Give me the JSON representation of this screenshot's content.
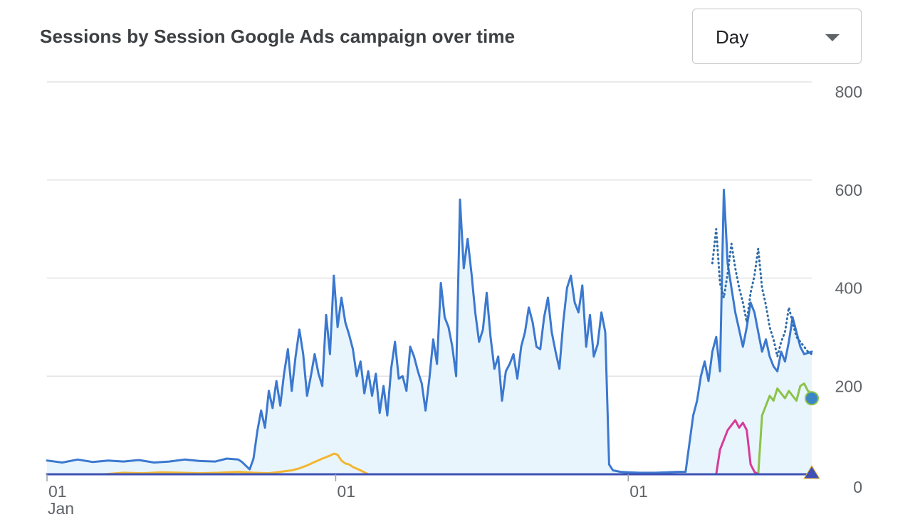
{
  "chart_data": {
    "type": "line",
    "title": "Sessions by Session Google Ads campaign over time",
    "granularity": "Day",
    "y_ticks": [
      "800",
      "600",
      "400",
      "200",
      "0"
    ],
    "ylim": [
      0,
      800
    ],
    "x_ticks": [
      {
        "day": 0,
        "label": "01",
        "sublabel": "Jan"
      },
      {
        "day": 151,
        "label": "01",
        "sublabel": ""
      },
      {
        "day": 304,
        "label": "01",
        "sublabel": ""
      }
    ],
    "x_range": [
      0,
      400
    ],
    "grid": true,
    "axis_position": "right",
    "series": [
      {
        "color": "#3b78d0",
        "style": "solid",
        "fill": "#e9f5fc",
        "points": [
          [
            0,
            28
          ],
          [
            8,
            24
          ],
          [
            16,
            30
          ],
          [
            24,
            25
          ],
          [
            32,
            28
          ],
          [
            40,
            26
          ],
          [
            48,
            29
          ],
          [
            56,
            24
          ],
          [
            64,
            26
          ],
          [
            72,
            30
          ],
          [
            80,
            27
          ],
          [
            88,
            26
          ],
          [
            94,
            32
          ],
          [
            100,
            30
          ],
          [
            102,
            25
          ],
          [
            106,
            10
          ],
          [
            108,
            32
          ],
          [
            110,
            88
          ],
          [
            112,
            130
          ],
          [
            114,
            95
          ],
          [
            116,
            170
          ],
          [
            118,
            135
          ],
          [
            120,
            190
          ],
          [
            122,
            140
          ],
          [
            124,
            205
          ],
          [
            126,
            255
          ],
          [
            128,
            170
          ],
          [
            130,
            240
          ],
          [
            132,
            295
          ],
          [
            134,
            245
          ],
          [
            136,
            160
          ],
          [
            138,
            200
          ],
          [
            140,
            245
          ],
          [
            142,
            205
          ],
          [
            144,
            180
          ],
          [
            146,
            325
          ],
          [
            148,
            245
          ],
          [
            150,
            405
          ],
          [
            152,
            300
          ],
          [
            154,
            360
          ],
          [
            156,
            310
          ],
          [
            158,
            285
          ],
          [
            160,
            255
          ],
          [
            162,
            200
          ],
          [
            164,
            230
          ],
          [
            166,
            165
          ],
          [
            168,
            210
          ],
          [
            170,
            160
          ],
          [
            172,
            205
          ],
          [
            174,
            125
          ],
          [
            176,
            180
          ],
          [
            178,
            120
          ],
          [
            180,
            215
          ],
          [
            182,
            270
          ],
          [
            184,
            195
          ],
          [
            186,
            200
          ],
          [
            188,
            170
          ],
          [
            190,
            260
          ],
          [
            192,
            240
          ],
          [
            194,
            210
          ],
          [
            196,
            185
          ],
          [
            198,
            130
          ],
          [
            200,
            195
          ],
          [
            202,
            275
          ],
          [
            204,
            225
          ],
          [
            206,
            390
          ],
          [
            208,
            320
          ],
          [
            210,
            300
          ],
          [
            212,
            260
          ],
          [
            214,
            200
          ],
          [
            216,
            560
          ],
          [
            218,
            420
          ],
          [
            220,
            480
          ],
          [
            222,
            410
          ],
          [
            224,
            330
          ],
          [
            226,
            270
          ],
          [
            228,
            295
          ],
          [
            230,
            370
          ],
          [
            232,
            280
          ],
          [
            234,
            215
          ],
          [
            236,
            240
          ],
          [
            238,
            150
          ],
          [
            240,
            210
          ],
          [
            242,
            225
          ],
          [
            244,
            245
          ],
          [
            246,
            195
          ],
          [
            248,
            260
          ],
          [
            250,
            290
          ],
          [
            252,
            340
          ],
          [
            254,
            310
          ],
          [
            256,
            260
          ],
          [
            258,
            255
          ],
          [
            260,
            320
          ],
          [
            262,
            360
          ],
          [
            264,
            290
          ],
          [
            266,
            250
          ],
          [
            268,
            215
          ],
          [
            270,
            310
          ],
          [
            272,
            380
          ],
          [
            274,
            405
          ],
          [
            276,
            350
          ],
          [
            278,
            330
          ],
          [
            280,
            385
          ],
          [
            282,
            260
          ],
          [
            284,
            325
          ],
          [
            286,
            240
          ],
          [
            288,
            265
          ],
          [
            290,
            330
          ],
          [
            292,
            290
          ],
          [
            294,
            20
          ],
          [
            296,
            8
          ],
          [
            300,
            5
          ],
          [
            304,
            4
          ],
          [
            310,
            3
          ],
          [
            318,
            3
          ],
          [
            324,
            4
          ],
          [
            330,
            5
          ],
          [
            334,
            5
          ],
          [
            338,
            120
          ],
          [
            340,
            150
          ],
          [
            342,
            200
          ],
          [
            344,
            230
          ],
          [
            346,
            190
          ],
          [
            348,
            250
          ],
          [
            350,
            280
          ],
          [
            352,
            210
          ],
          [
            354,
            580
          ],
          [
            356,
            430
          ],
          [
            358,
            380
          ],
          [
            360,
            330
          ],
          [
            362,
            295
          ],
          [
            364,
            260
          ],
          [
            366,
            300
          ],
          [
            368,
            350
          ],
          [
            370,
            330
          ],
          [
            372,
            290
          ],
          [
            374,
            250
          ],
          [
            376,
            275
          ],
          [
            378,
            240
          ],
          [
            380,
            220
          ],
          [
            382,
            210
          ],
          [
            384,
            250
          ],
          [
            386,
            230
          ],
          [
            388,
            270
          ],
          [
            390,
            320
          ],
          [
            392,
            290
          ],
          [
            394,
            260
          ],
          [
            396,
            245
          ],
          [
            400,
            250
          ]
        ]
      },
      {
        "color": "#2f6ca8",
        "style": "dotted",
        "fill": "",
        "points": [
          [
            348,
            430
          ],
          [
            350,
            500
          ],
          [
            352,
            390
          ],
          [
            354,
            360
          ],
          [
            356,
            410
          ],
          [
            358,
            470
          ],
          [
            360,
            420
          ],
          [
            362,
            380
          ],
          [
            364,
            350
          ],
          [
            366,
            310
          ],
          [
            368,
            370
          ],
          [
            370,
            405
          ],
          [
            372,
            460
          ],
          [
            374,
            380
          ],
          [
            376,
            345
          ],
          [
            378,
            300
          ],
          [
            380,
            275
          ],
          [
            382,
            240
          ],
          [
            384,
            270
          ],
          [
            386,
            290
          ],
          [
            388,
            340
          ],
          [
            390,
            310
          ],
          [
            392,
            280
          ],
          [
            394,
            270
          ],
          [
            396,
            260
          ],
          [
            398,
            250
          ],
          [
            400,
            245
          ]
        ]
      },
      {
        "color": "#8bc34a",
        "style": "solid",
        "fill": "",
        "points": [
          [
            372,
            0
          ],
          [
            374,
            120
          ],
          [
            376,
            140
          ],
          [
            378,
            160
          ],
          [
            380,
            150
          ],
          [
            382,
            175
          ],
          [
            384,
            165
          ],
          [
            386,
            155
          ],
          [
            388,
            170
          ],
          [
            390,
            160
          ],
          [
            392,
            150
          ],
          [
            394,
            180
          ],
          [
            396,
            185
          ],
          [
            398,
            170
          ],
          [
            400,
            165
          ]
        ]
      },
      {
        "color": "#d63b9a",
        "style": "solid",
        "fill": "",
        "points": [
          [
            350,
            0
          ],
          [
            352,
            50
          ],
          [
            354,
            70
          ],
          [
            356,
            90
          ],
          [
            358,
            100
          ],
          [
            360,
            110
          ],
          [
            362,
            95
          ],
          [
            364,
            105
          ],
          [
            366,
            90
          ],
          [
            368,
            20
          ],
          [
            370,
            5
          ],
          [
            372,
            0
          ],
          [
            376,
            0
          ],
          [
            400,
            0
          ]
        ]
      },
      {
        "color": "#f2b632",
        "style": "solid",
        "fill": "",
        "points": [
          [
            30,
            0
          ],
          [
            40,
            3
          ],
          [
            50,
            2
          ],
          [
            60,
            4
          ],
          [
            70,
            3
          ],
          [
            80,
            2
          ],
          [
            90,
            3
          ],
          [
            100,
            5
          ],
          [
            108,
            3
          ],
          [
            116,
            2
          ],
          [
            124,
            6
          ],
          [
            128,
            8
          ],
          [
            132,
            12
          ],
          [
            136,
            18
          ],
          [
            140,
            25
          ],
          [
            144,
            32
          ],
          [
            148,
            38
          ],
          [
            150,
            42
          ],
          [
            152,
            40
          ],
          [
            154,
            28
          ],
          [
            156,
            22
          ],
          [
            158,
            20
          ],
          [
            160,
            15
          ],
          [
            164,
            8
          ],
          [
            168,
            0
          ],
          [
            200,
            0
          ],
          [
            400,
            0
          ]
        ]
      },
      {
        "color": "#3f51b5",
        "style": "solid",
        "fill": "",
        "points": [
          [
            0,
            0
          ],
          [
            400,
            0
          ]
        ]
      }
    ]
  }
}
